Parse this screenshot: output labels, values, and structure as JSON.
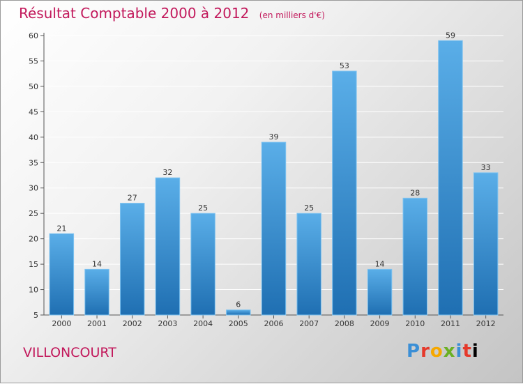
{
  "chart_data": {
    "type": "bar",
    "title": "Résultat Comptable 2000 à 2012",
    "subtitle": "(en milliers d'€)",
    "categories": [
      "2000",
      "2001",
      "2002",
      "2003",
      "2004",
      "2005",
      "2006",
      "2007",
      "2008",
      "2009",
      "2010",
      "2011",
      "2012"
    ],
    "values": [
      21,
      14,
      27,
      32,
      25,
      6,
      39,
      25,
      53,
      14,
      28,
      59,
      33
    ],
    "ylim": [
      5,
      60
    ],
    "yticks": [
      5,
      10,
      15,
      20,
      25,
      30,
      35,
      40,
      45,
      50,
      55,
      60
    ],
    "grid": true,
    "xlabel": "",
    "ylabel": ""
  },
  "location": "VILLONCOURT",
  "brand": {
    "letters": [
      "P",
      "r",
      "o",
      "x",
      "i",
      "t",
      "i"
    ]
  },
  "colors": {
    "accent": "#c2185b",
    "bar_top": "#5aaee8",
    "bar_bottom": "#1f6fb2",
    "grid": "#ffffff"
  }
}
